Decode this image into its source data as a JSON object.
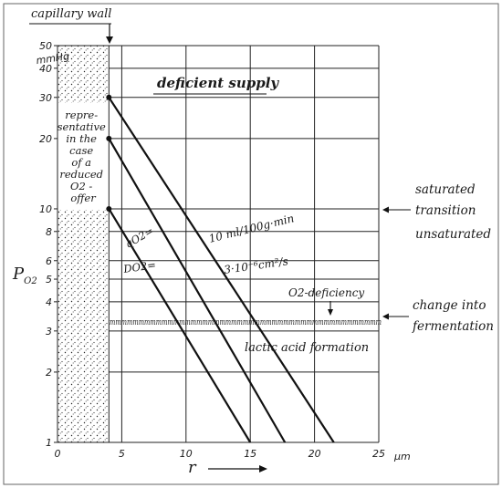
{
  "chart_data": {
    "type": "line",
    "xlabel": "r",
    "ylabel": "P",
    "ylabel_sub": "O2",
    "x_unit": "μm",
    "y_unit": "mmHg",
    "y_scale": "log",
    "xlim": [
      0,
      25
    ],
    "ylim": [
      1,
      50
    ],
    "grid": true,
    "x_ticks": [
      0,
      5,
      10,
      15,
      20,
      25
    ],
    "x_tick_labels": [
      "0",
      "5",
      "10",
      "15",
      "20",
      "25"
    ],
    "y_ticks": [
      1,
      2,
      3,
      4,
      5,
      6,
      8,
      10,
      20,
      30,
      40,
      50
    ],
    "y_tick_labels": [
      "1",
      "2",
      "3",
      "4",
      "5",
      "6",
      "8",
      "10",
      "20",
      "30",
      "40",
      "50"
    ],
    "capillary_wall_x": 4,
    "series": [
      {
        "x": [
          4,
          21.5
        ],
        "y": [
          30,
          1
        ]
      },
      {
        "x": [
          4,
          17.7
        ],
        "y": [
          20,
          1
        ]
      },
      {
        "x": [
          4,
          15.0
        ],
        "y": [
          10,
          1
        ]
      }
    ],
    "fermentation_level": 3.3,
    "fermentation_marks": "mmmmmmmmmmmmmmmmmmmmmmmmmmmmmmmmmmmmmmmmmmmmmmm",
    "annotations": {
      "capillary_wall": "capillary wall",
      "deficient_supply": "deficient supply",
      "representative": [
        "repre-",
        "sentative",
        "in the",
        "case",
        "of a",
        "reduced",
        "O2 -",
        "offer"
      ],
      "flow": "10 ml/100g·min",
      "diffusion": "3·10⁻⁶cm²/s",
      "q_label": "qO2=",
      "d_label": "DO2=",
      "o2_deficiency": "O2-deficiency",
      "lactic": "lactic acid formation",
      "saturated": "saturated",
      "transition": "transition",
      "unsaturated": "unsaturated",
      "change_into": "change into",
      "fermentation": "fermentation"
    }
  }
}
